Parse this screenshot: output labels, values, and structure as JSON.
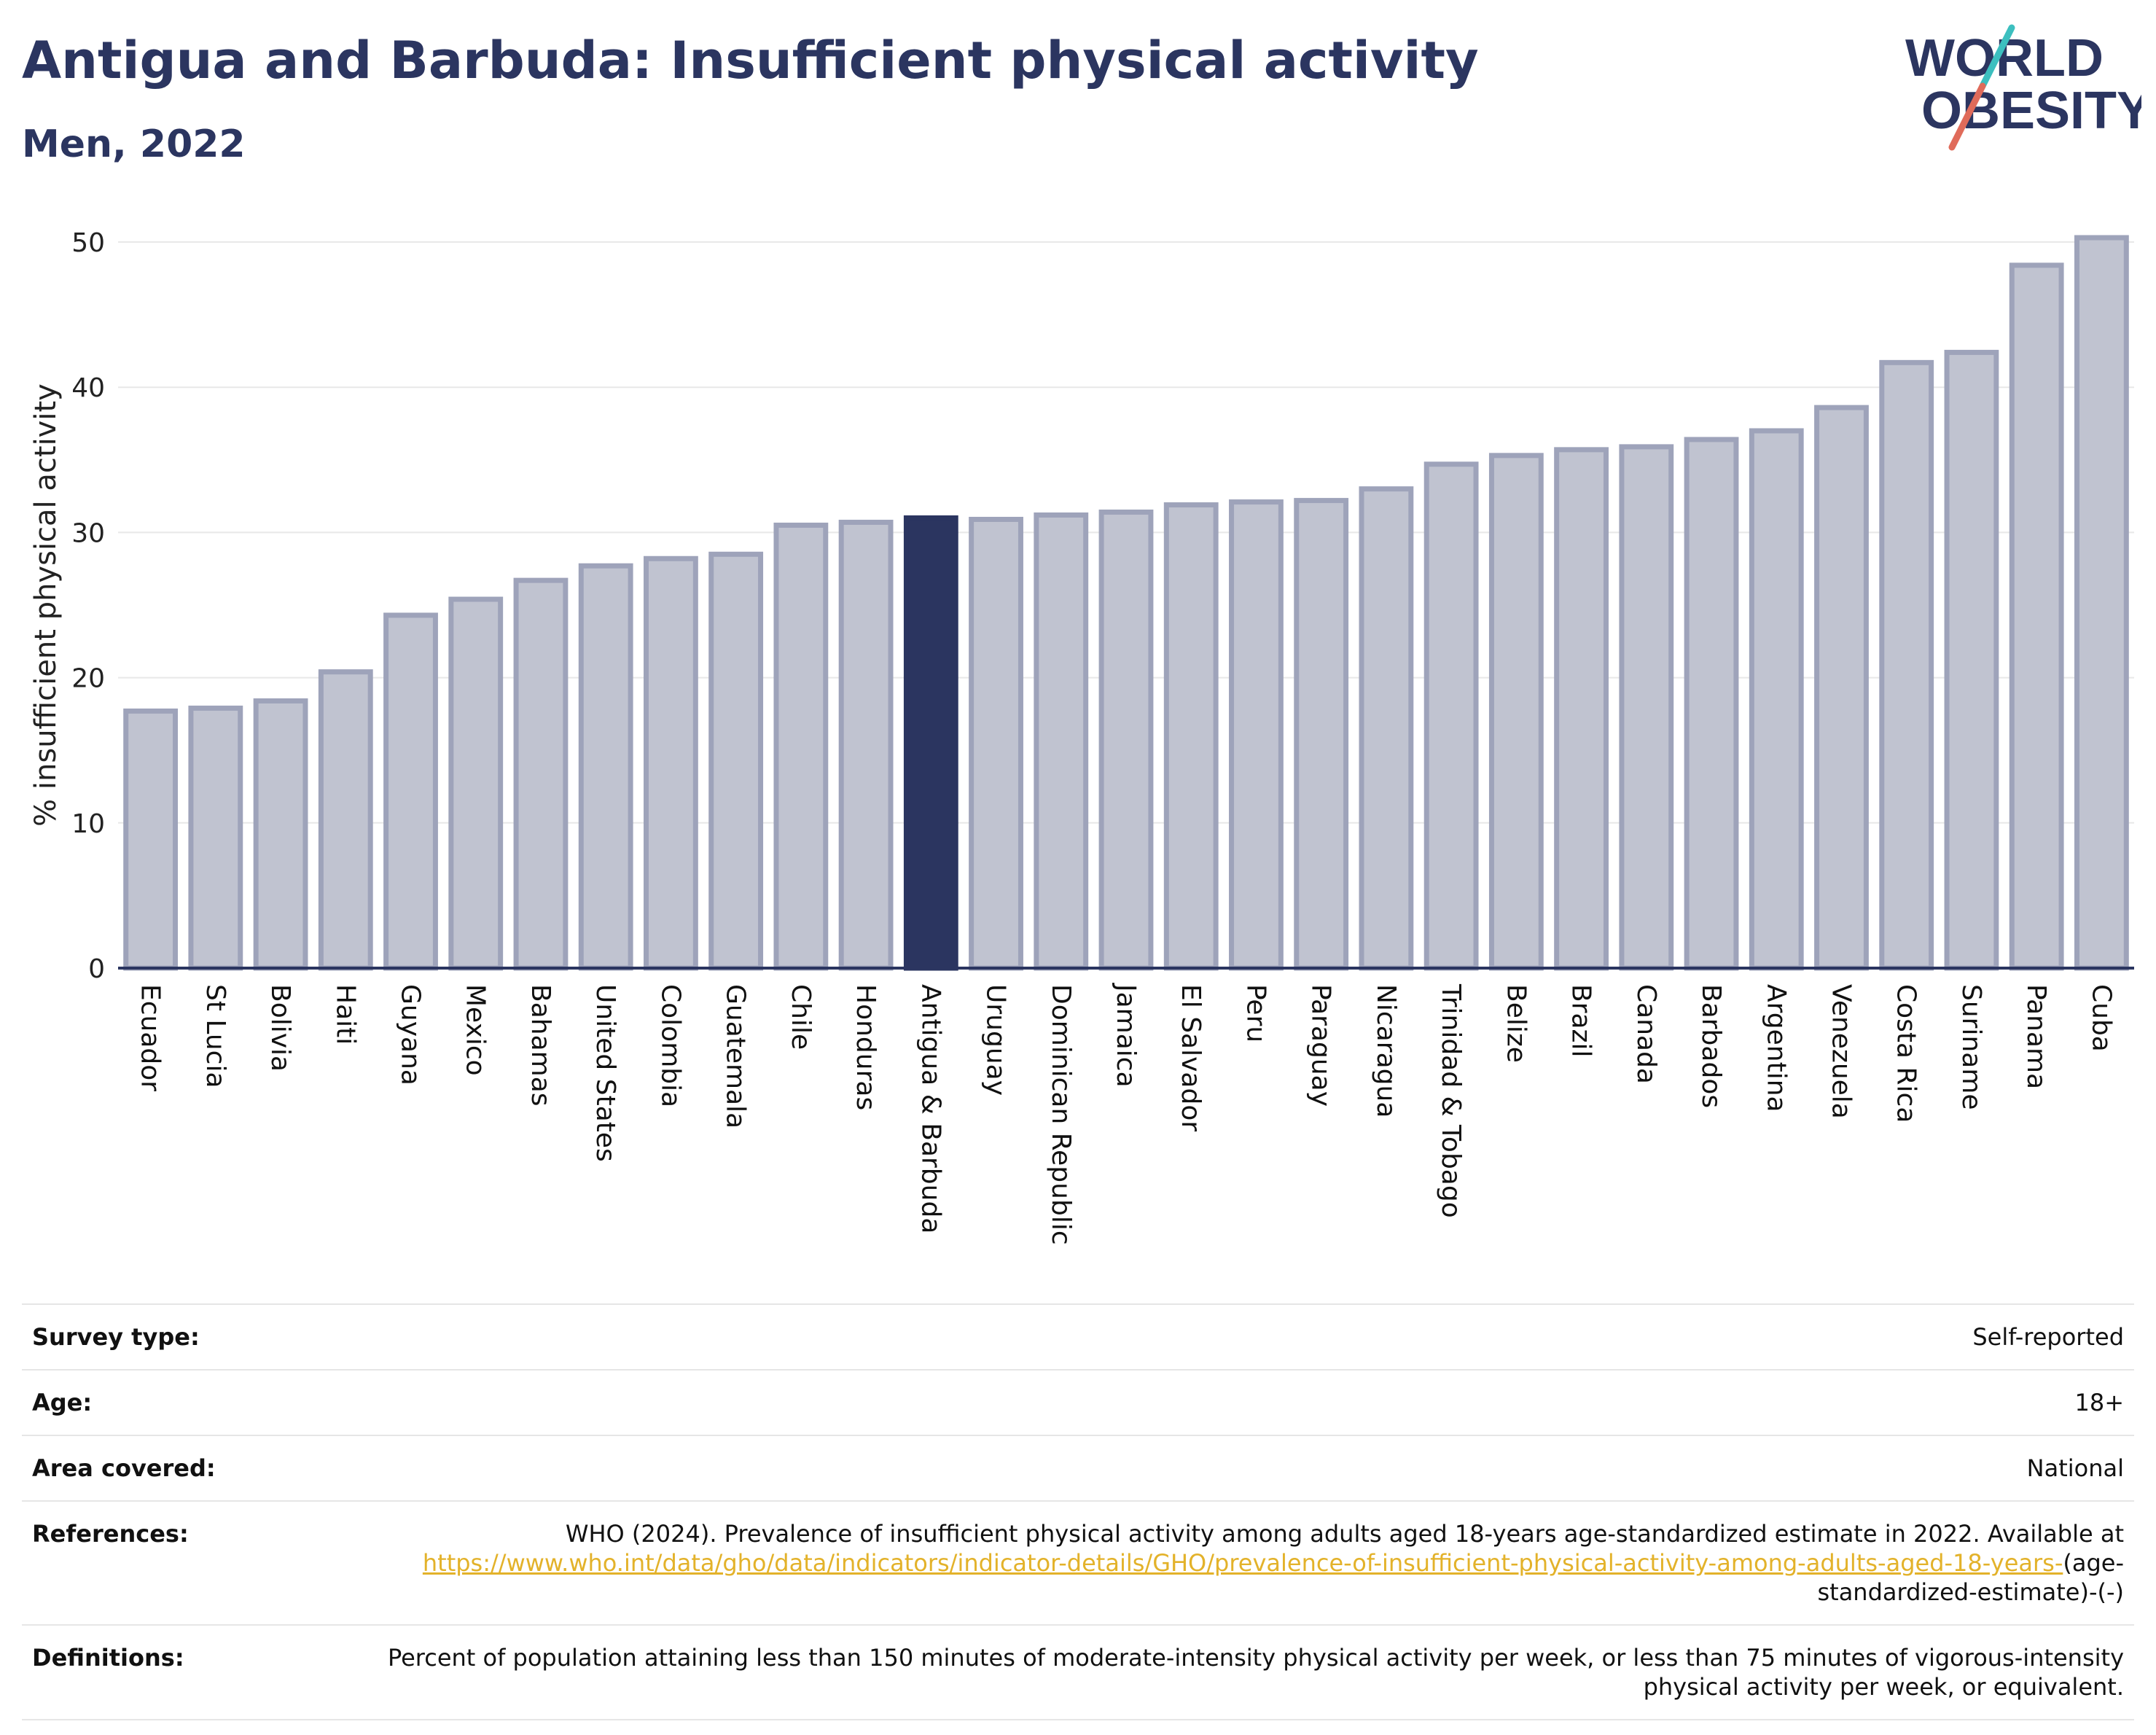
{
  "title": "Antigua and Barbuda: Insufficient physical activity",
  "subtitle": "Men, 2022",
  "logo": {
    "line1": "WORLD",
    "line2": "OBESITY",
    "colors": {
      "text": "#2b3560",
      "teal": "#3cbfbf",
      "red": "#e06b5a"
    }
  },
  "chart_data": {
    "type": "bar",
    "ylabel": "% insufficient physical activity",
    "ylim": [
      0,
      50
    ],
    "yticks": [
      0,
      10,
      20,
      30,
      40,
      50
    ],
    "grid": true,
    "highlight": "Antigua & Barbuda",
    "colors": {
      "bar": "#c0c3d0",
      "bar_border": "#9ea3ba",
      "highlight": "#2b3560",
      "grid": "#e8e8e8"
    },
    "categories": [
      "Ecuador",
      "St Lucia",
      "Bolivia",
      "Haiti",
      "Guyana",
      "Mexico",
      "Bahamas",
      "United States",
      "Colombia",
      "Guatemala",
      "Chile",
      "Honduras",
      "Antigua & Barbuda",
      "Uruguay",
      "Dominican Republic",
      "Jamaica",
      "El Salvador",
      "Peru",
      "Paraguay",
      "Nicaragua",
      "Trinidad & Tobago",
      "Belize",
      "Brazil",
      "Canada",
      "Barbados",
      "Argentina",
      "Venezuela",
      "Costa Rica",
      "Suriname",
      "Panama",
      "Cuba"
    ],
    "values": [
      17.7,
      17.9,
      18.4,
      20.4,
      24.3,
      25.4,
      26.7,
      27.7,
      28.2,
      28.5,
      30.5,
      30.7,
      31.0,
      30.9,
      31.2,
      31.4,
      31.9,
      32.1,
      32.2,
      33.0,
      34.7,
      35.3,
      35.7,
      35.9,
      36.4,
      37.0,
      38.6,
      41.7,
      42.4,
      48.4,
      50.3
    ]
  },
  "meta": [
    {
      "label": "Survey type:",
      "value": "Self-reported"
    },
    {
      "label": "Age:",
      "value": "18+"
    },
    {
      "label": "Area covered:",
      "value": "National"
    },
    {
      "label": "References:",
      "value": "WHO (2024). Prevalence of insufficient physical activity among adults aged 18-years age-standardized estimate in 2022. Available at",
      "link": "https://www.who.int/data/gho/data/indicators/indicator-details/GHO/prevalence-of-insufficient-physical-activity-among-adults-aged-18-years-",
      "suffix": "(age-standardized-estimate)-(-)"
    },
    {
      "label": "Definitions:",
      "value": "Percent of population attaining less than 150 minutes of moderate-intensity physical activity per week, or less than 75 minutes of vigorous-intensity physical activity per week, or equivalent."
    }
  ]
}
